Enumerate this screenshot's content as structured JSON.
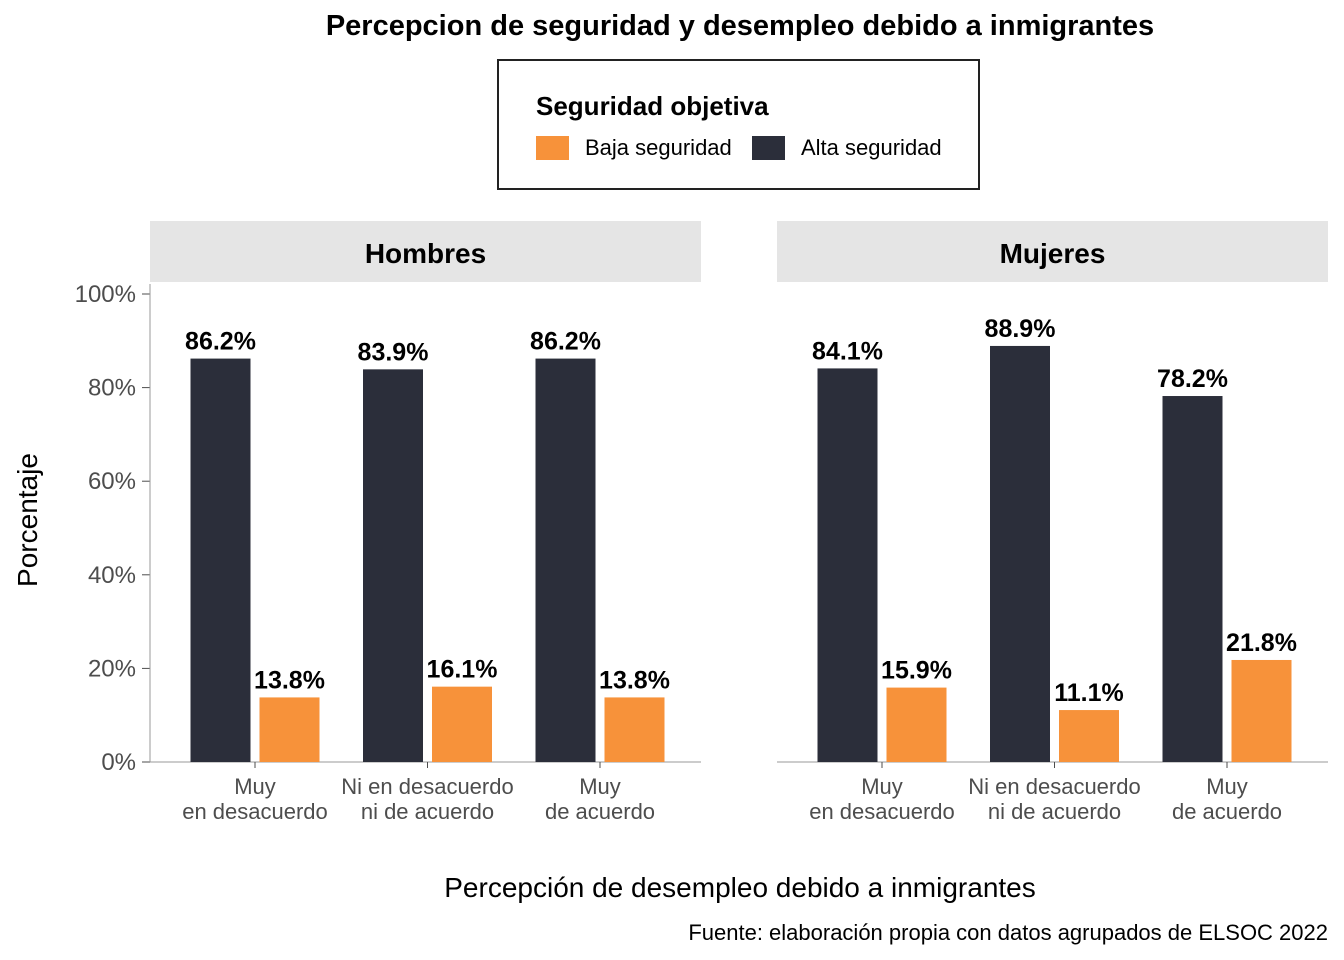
{
  "title": "Percepcion de seguridad y desempleo debido a inmigrantes",
  "legend": {
    "title": "Seguridad objetiva",
    "items": [
      {
        "label": "Baja seguridad",
        "color": "#F7923A"
      },
      {
        "label": "Alta seguridad",
        "color": "#2B2E3A"
      }
    ]
  },
  "ylabel": "Porcentaje",
  "xlabel": "Percepción de desempleo debido a inmigrantes",
  "caption": "Fuente: elaboración propia con datos agrupados de ELSOC 2022",
  "chart_data": {
    "type": "bar",
    "ylim": [
      0,
      100
    ],
    "yticks": [
      "0%",
      "20%",
      "40%",
      "60%",
      "80%",
      "100%"
    ],
    "categories": [
      [
        "Muy",
        "en desacuerdo"
      ],
      [
        "Ni en desacuerdo",
        "ni de acuerdo"
      ],
      [
        "Muy",
        "de acuerdo"
      ]
    ],
    "panels": [
      {
        "name": "Hombres",
        "series": [
          {
            "name": "Alta seguridad",
            "color": "#2B2E3A",
            "values": [
              86.2,
              83.9,
              86.2
            ],
            "labels": [
              "86.2%",
              "83.9%",
              "86.2%"
            ]
          },
          {
            "name": "Baja seguridad",
            "color": "#F7923A",
            "values": [
              13.8,
              16.1,
              13.8
            ],
            "labels": [
              "13.8%",
              "16.1%",
              "13.8%"
            ]
          }
        ]
      },
      {
        "name": "Mujeres",
        "series": [
          {
            "name": "Alta seguridad",
            "color": "#2B2E3A",
            "values": [
              84.1,
              88.9,
              78.2
            ],
            "labels": [
              "84.1%",
              "88.9%",
              "78.2%"
            ]
          },
          {
            "name": "Baja seguridad",
            "color": "#F7923A",
            "values": [
              15.9,
              11.1,
              21.8
            ],
            "labels": [
              "15.9%",
              "11.1%",
              "21.8%"
            ]
          }
        ]
      }
    ]
  }
}
